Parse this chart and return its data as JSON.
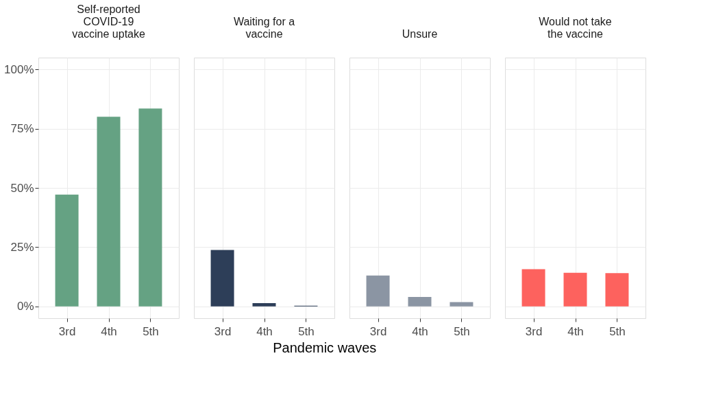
{
  "chart_data": [
    {
      "type": "bar",
      "title": "Self-reported\nCOVID-19\nvaccine uptake",
      "categories": [
        "3rd",
        "4th",
        "5th"
      ],
      "values": [
        47.2,
        80,
        83.5
      ],
      "color": "#65a283",
      "ylim": [
        -5,
        105
      ],
      "yticks": [
        {
          "value": 0,
          "label": "0%"
        },
        {
          "value": 25,
          "label": "25%"
        },
        {
          "value": 50,
          "label": "50%"
        },
        {
          "value": 75,
          "label": "75%"
        },
        {
          "value": 100,
          "label": "100%"
        }
      ],
      "grid": true
    },
    {
      "type": "bar",
      "title": "Waiting for a\nvaccine",
      "categories": [
        "3rd",
        "4th",
        "5th"
      ],
      "values": [
        23.8,
        1.4,
        0.3
      ],
      "color": "#2d3e58",
      "ylim": [
        -5,
        105
      ],
      "grid": true,
      "tick_labels": "x"
    },
    {
      "type": "bar",
      "title": "Unsure",
      "xlabel": "Pandemic waves",
      "categories": [
        "3rd",
        "4th",
        "5th"
      ],
      "values": [
        13,
        4,
        1.8
      ],
      "color": "#8b95a3",
      "ylim": [
        -5,
        105
      ],
      "grid": true,
      "tick_labels": "x"
    },
    {
      "type": "bar",
      "title": "Would not take\nthe vaccine",
      "categories": [
        "3rd",
        "4th",
        "5th"
      ],
      "values": [
        15.7,
        14.2,
        14
      ],
      "color": "#fd625e",
      "ylim": [
        -5,
        105
      ],
      "grid": true,
      "tick_labels": "x"
    }
  ]
}
